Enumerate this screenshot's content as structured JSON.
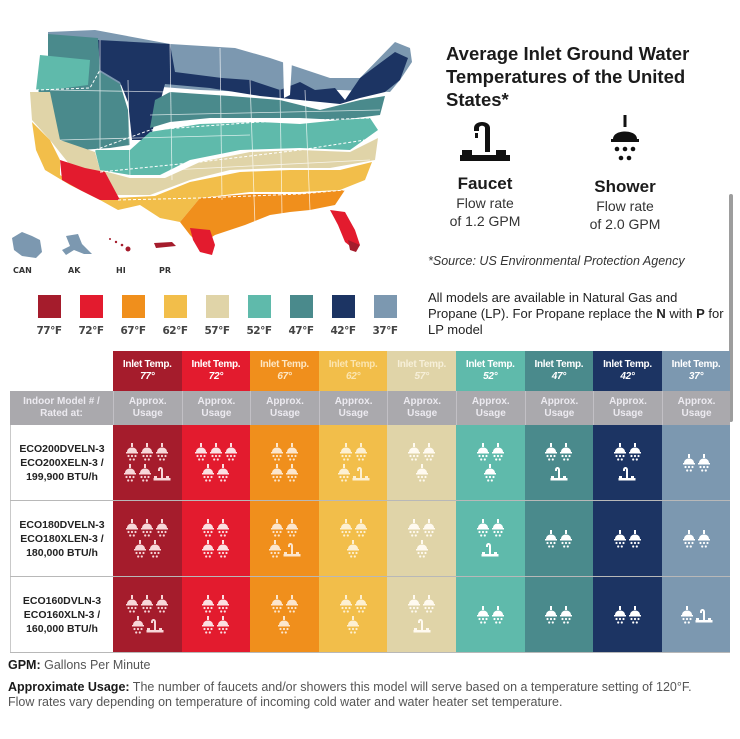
{
  "title": "Average Inlet Ground Water Temperatures of the United States*",
  "fixtures": {
    "faucet": {
      "name": "Faucet",
      "rate_line1": "Flow rate",
      "rate_line2": "of 1.2 GPM",
      "icon": "faucet-icon"
    },
    "shower": {
      "name": "Shower",
      "rate_line1": "Flow rate",
      "rate_line2": "of 2.0 GPM",
      "icon": "shower-icon"
    }
  },
  "source": "*Source: US Environmental Protection Agency",
  "models_note": {
    "line1": "All models are available in Natural Gas and Propane (LP). For Propane replace the",
    "n_letter": "N",
    "with_text": " with ",
    "p_letter": "P",
    "tail": " for LP model"
  },
  "map": {
    "territories": [
      "CAN",
      "AK",
      "HI",
      "PR"
    ]
  },
  "legend": [
    {
      "label": "77°F",
      "color": "#a51c2c"
    },
    {
      "label": "72°F",
      "color": "#e31b2e"
    },
    {
      "label": "67°F",
      "color": "#f08f1c"
    },
    {
      "label": "62°F",
      "color": "#f2be4a"
    },
    {
      "label": "57°F",
      "color": "#e0d4a8"
    },
    {
      "label": "52°F",
      "color": "#5fbaab"
    },
    {
      "label": "47°F",
      "color": "#4a8a8c"
    },
    {
      "label": "42°F",
      "color": "#1c3463"
    },
    {
      "label": "37°F",
      "color": "#7c98b0"
    }
  ],
  "table": {
    "header_prefix": "Inlet Temp.",
    "temps": [
      "77°",
      "72°",
      "67°",
      "62°",
      "57°",
      "52°",
      "47°",
      "42°",
      "37°"
    ],
    "model_header_line1": "Indoor Model # /",
    "model_header_line2": "Rated at:",
    "usage_line1": "Approx.",
    "usage_line2": "Usage",
    "rows": [
      {
        "model_line1": "ECO200DVELN-3",
        "model_line2": "ECO200XELN-3 /",
        "model_line3": "199,900 BTU/h",
        "usage": [
          {
            "showers": 5,
            "faucets": 1
          },
          {
            "showers": 5,
            "faucets": 0
          },
          {
            "showers": 4,
            "faucets": 0
          },
          {
            "showers": 3,
            "faucets": 1
          },
          {
            "showers": 3,
            "faucets": 0
          },
          {
            "showers": 3,
            "faucets": 0
          },
          {
            "showers": 2,
            "faucets": 1
          },
          {
            "showers": 2,
            "faucets": 1
          },
          {
            "showers": 2,
            "faucets": 0
          }
        ]
      },
      {
        "model_line1": "ECO180DVELN-3",
        "model_line2": "ECO180XLEN-3 /",
        "model_line3": "180,000 BTU/h",
        "usage": [
          {
            "showers": 5,
            "faucets": 0
          },
          {
            "showers": 4,
            "faucets": 0
          },
          {
            "showers": 3,
            "faucets": 1
          },
          {
            "showers": 3,
            "faucets": 0
          },
          {
            "showers": 3,
            "faucets": 0
          },
          {
            "showers": 2,
            "faucets": 1
          },
          {
            "showers": 2,
            "faucets": 0
          },
          {
            "showers": 2,
            "faucets": 0
          },
          {
            "showers": 2,
            "faucets": 0
          }
        ]
      },
      {
        "model_line1": "ECO160DVLN-3",
        "model_line2": "ECO160XLN-3 /",
        "model_line3": "160,000 BTU/h",
        "usage": [
          {
            "showers": 4,
            "faucets": 1
          },
          {
            "showers": 4,
            "faucets": 0
          },
          {
            "showers": 3,
            "faucets": 0
          },
          {
            "showers": 3,
            "faucets": 0
          },
          {
            "showers": 2,
            "faucets": 1
          },
          {
            "showers": 2,
            "faucets": 0
          },
          {
            "showers": 2,
            "faucets": 0
          },
          {
            "showers": 2,
            "faucets": 0
          },
          {
            "showers": 1,
            "faucets": 1
          }
        ]
      }
    ]
  },
  "footnotes": {
    "gpm_label": "GPM:",
    "gpm_text": " Gallons Per Minute",
    "usage_label": "Approximate Usage:",
    "usage_text": " The number of faucets and/or showers this model will serve based on a temperature setting of 120°F. Flow rates vary depending on temperature of incoming cold water and water heater set temperature."
  }
}
